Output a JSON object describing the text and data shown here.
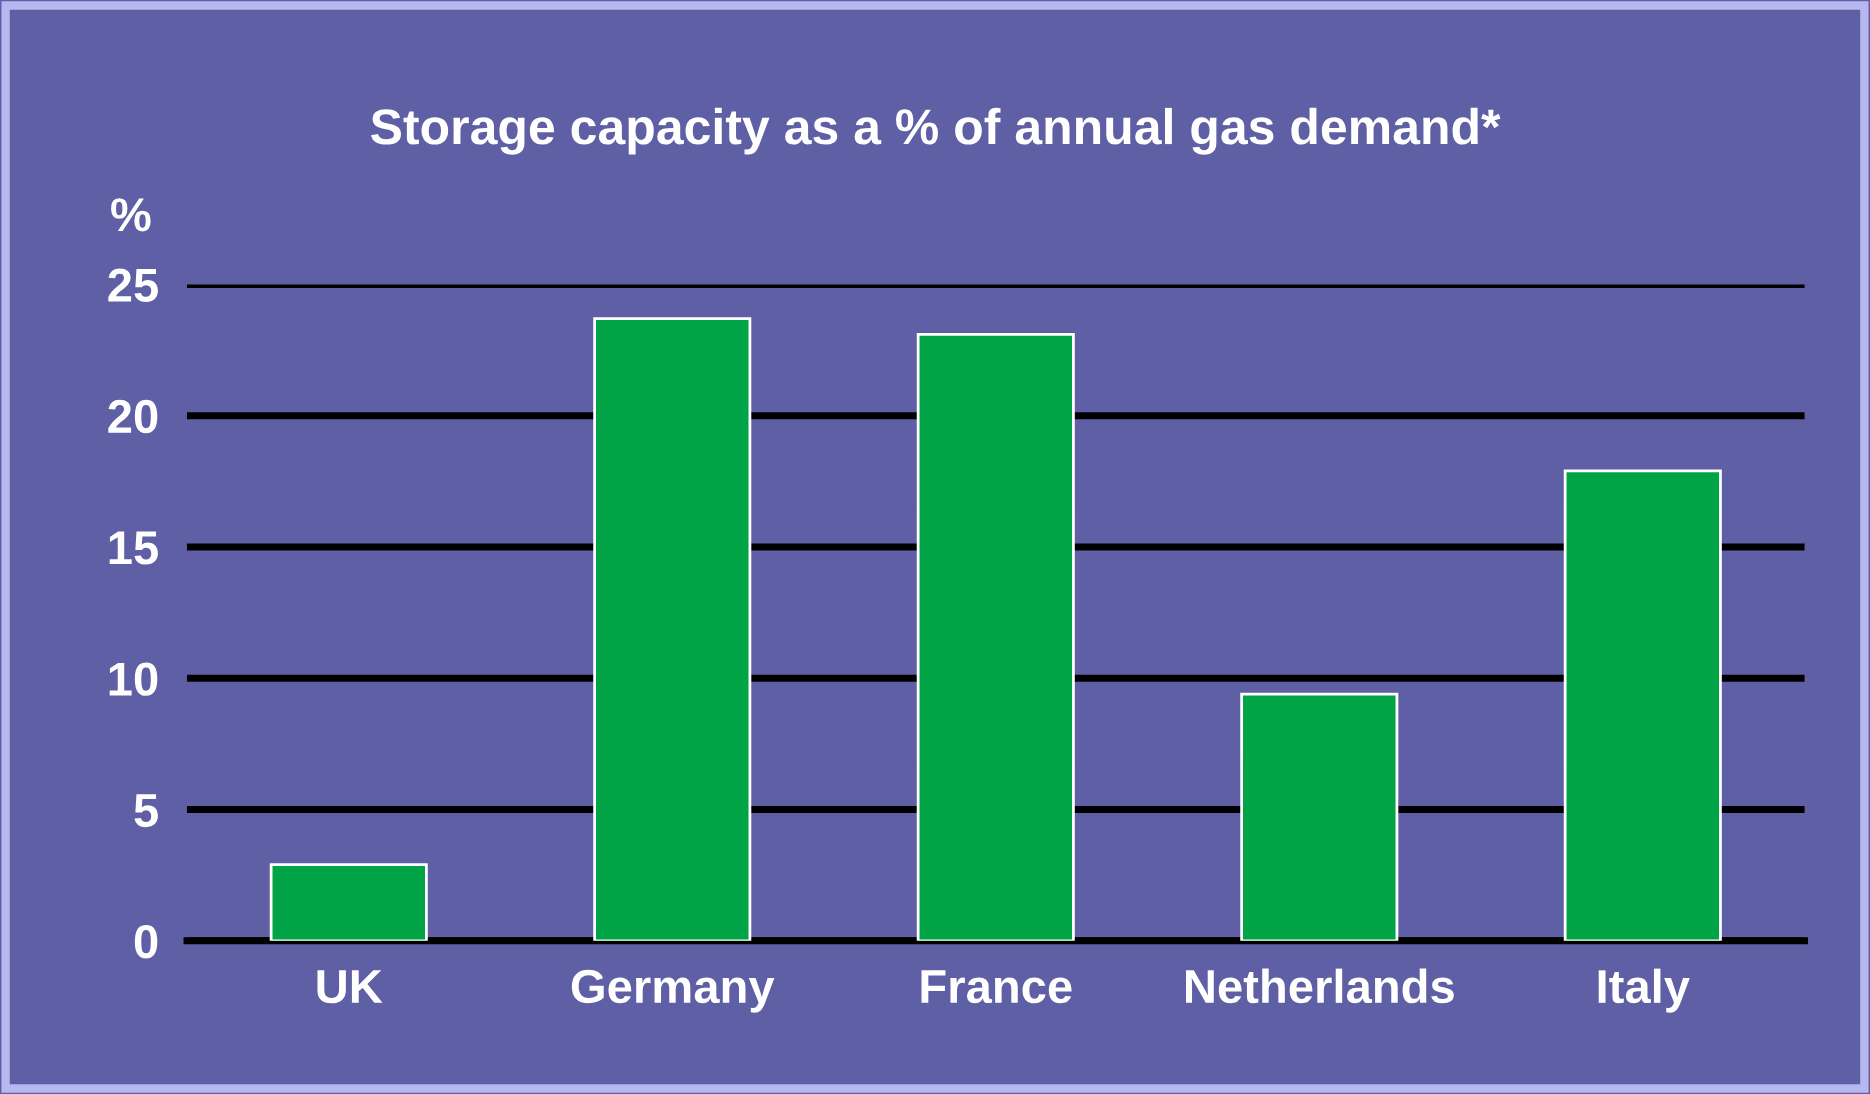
{
  "chart_data": {
    "type": "bar",
    "title": "Storage capacity as a % of annual gas demand*",
    "ylabel": "%",
    "categories": [
      "UK",
      "Germany",
      "France",
      "Netherlands",
      "Italy"
    ],
    "values": [
      2.9,
      23.7,
      23.1,
      9.4,
      17.9
    ],
    "color": "#00a346",
    "ylim": [
      0,
      25
    ],
    "yticks": [
      0,
      5,
      10,
      15,
      20,
      25
    ],
    "grid": "y"
  }
}
